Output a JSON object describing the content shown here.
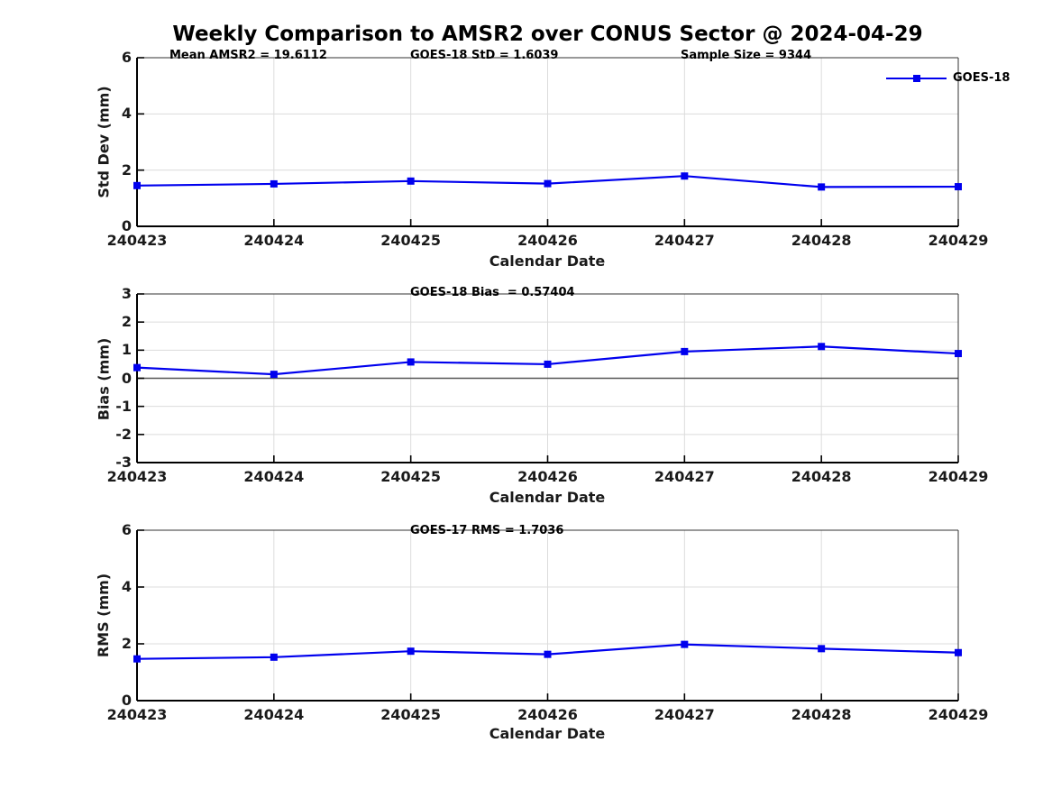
{
  "title": "Weekly Comparison to AMSR2 over CONUS Sector @ 2024-04-29",
  "legend": {
    "label": "GOES-18"
  },
  "colors": {
    "line": "#0000EE",
    "grid": "#DCDCDC",
    "axis": "#000000",
    "box": "#333333",
    "zero_line": "#555555",
    "background": "#FFFFFF"
  },
  "subplots": [
    {
      "ylabel": "Std Dev (mm)",
      "xlabel": "Calendar Date",
      "annotations": [
        "Mean AMSR2 = 19.6112",
        "GOES-18 StD = 1.6039",
        "Sample Size = 9344"
      ]
    },
    {
      "ylabel": "Bias (mm)",
      "xlabel": "Calendar Date",
      "annotations": [
        "GOES-18 Bias  = 0.57404"
      ]
    },
    {
      "ylabel": "RMS (mm)",
      "xlabel": "Calendar Date",
      "annotations": [
        "GOES-17 RMS = 1.7036"
      ]
    }
  ],
  "chart_data": [
    {
      "type": "line",
      "title": "Weekly Comparison to AMSR2 over CONUS Sector @ 2024-04-29",
      "categories": [
        "240423",
        "240424",
        "240425",
        "240426",
        "240427",
        "240428",
        "240429"
      ],
      "series": [
        {
          "name": "GOES-18",
          "values": [
            1.45,
            1.51,
            1.61,
            1.52,
            1.79,
            1.4,
            1.41
          ]
        }
      ],
      "xlabel": "Calendar Date",
      "ylabel": "Std Dev (mm)",
      "ylim": [
        0,
        6
      ],
      "yticks": [
        0,
        2,
        4,
        6
      ],
      "grid": true,
      "zero_line": false,
      "legend_position": "top-right",
      "marker": "square"
    },
    {
      "type": "line",
      "categories": [
        "240423",
        "240424",
        "240425",
        "240426",
        "240427",
        "240428",
        "240429"
      ],
      "series": [
        {
          "name": "GOES-18",
          "values": [
            0.38,
            0.14,
            0.58,
            0.5,
            0.95,
            1.13,
            0.88
          ]
        }
      ],
      "xlabel": "Calendar Date",
      "ylabel": "Bias (mm)",
      "ylim": [
        -3,
        3
      ],
      "yticks": [
        -3,
        -2,
        -1,
        0,
        1,
        2,
        3
      ],
      "grid": true,
      "zero_line": true,
      "legend_position": "none",
      "marker": "square"
    },
    {
      "type": "line",
      "categories": [
        "240423",
        "240424",
        "240425",
        "240426",
        "240427",
        "240428",
        "240429"
      ],
      "series": [
        {
          "name": "GOES-18",
          "values": [
            1.47,
            1.53,
            1.74,
            1.63,
            1.98,
            1.83,
            1.69
          ]
        }
      ],
      "xlabel": "Calendar Date",
      "ylabel": "RMS (mm)",
      "ylim": [
        0,
        6
      ],
      "yticks": [
        0,
        2,
        4,
        6
      ],
      "grid": true,
      "zero_line": false,
      "legend_position": "none",
      "marker": "square"
    }
  ]
}
